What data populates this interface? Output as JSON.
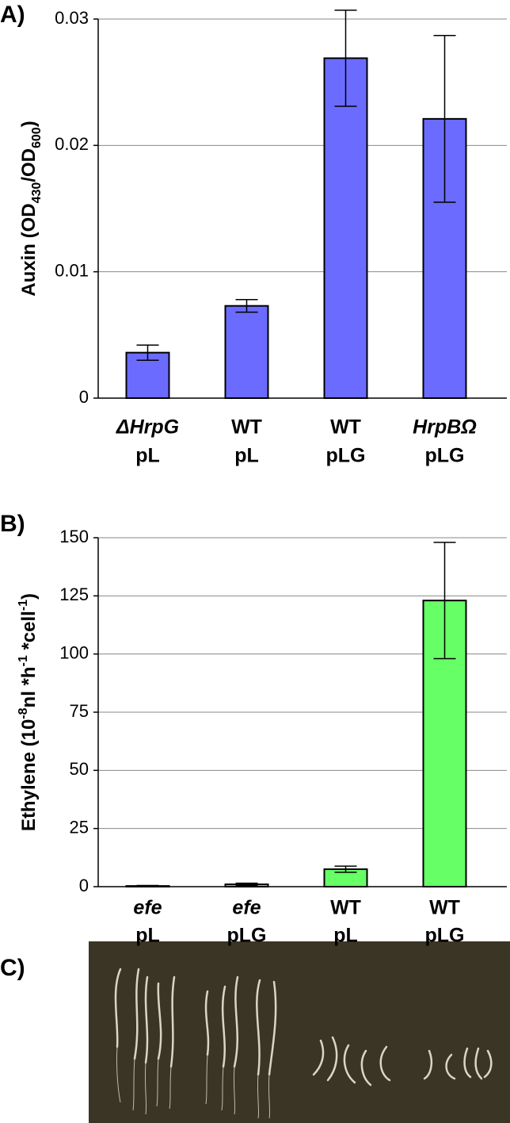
{
  "panel_labels": [
    "A)",
    "B)",
    "C)"
  ],
  "chart_data": [
    {
      "type": "bar",
      "ylabel": [
        {
          "text": "Auxin (OD"
        },
        {
          "text": "430",
          "shift": "sub"
        },
        {
          "text": "/OD"
        },
        {
          "text": "600",
          "shift": "sub"
        },
        {
          "text": ")"
        }
      ],
      "categories": [
        [
          "ΔHrpG",
          "pL"
        ],
        [
          "WT",
          "pL"
        ],
        [
          "WT",
          "pLG"
        ],
        [
          "HrpBΩ",
          "pLG"
        ]
      ],
      "italic_first_line": [
        true,
        false,
        false,
        true
      ],
      "values": [
        0.0036,
        0.0073,
        0.0269,
        0.0221
      ],
      "errors": [
        0.0006,
        0.0005,
        0.0038,
        0.0066
      ],
      "color": "#6b6bff",
      "ylim": [
        0,
        0.03
      ],
      "yticks": [
        0,
        0.01,
        0.02,
        0.03
      ],
      "grid": true
    },
    {
      "type": "bar",
      "ylabel": [
        {
          "text": "Ethylene (10"
        },
        {
          "text": "-8",
          "shift": "super"
        },
        {
          "text": "nl *h"
        },
        {
          "text": "-1",
          "shift": "super"
        },
        {
          "text": " *cell"
        },
        {
          "text": "-1",
          "shift": "super"
        },
        {
          "text": ")"
        }
      ],
      "categories": [
        [
          "efe",
          "pL"
        ],
        [
          "efe",
          "pLG"
        ],
        [
          "WT",
          "pL"
        ],
        [
          "WT",
          "pLG"
        ]
      ],
      "italic_first_line": [
        true,
        true,
        false,
        false
      ],
      "values": [
        0.3,
        1,
        7.5,
        123
      ],
      "errors": [
        0.2,
        0.5,
        1.3,
        25
      ],
      "color": "#66ff66",
      "ylim": [
        0,
        150
      ],
      "yticks": [
        0,
        25,
        50,
        75,
        100,
        125,
        150
      ],
      "grid": true
    }
  ]
}
